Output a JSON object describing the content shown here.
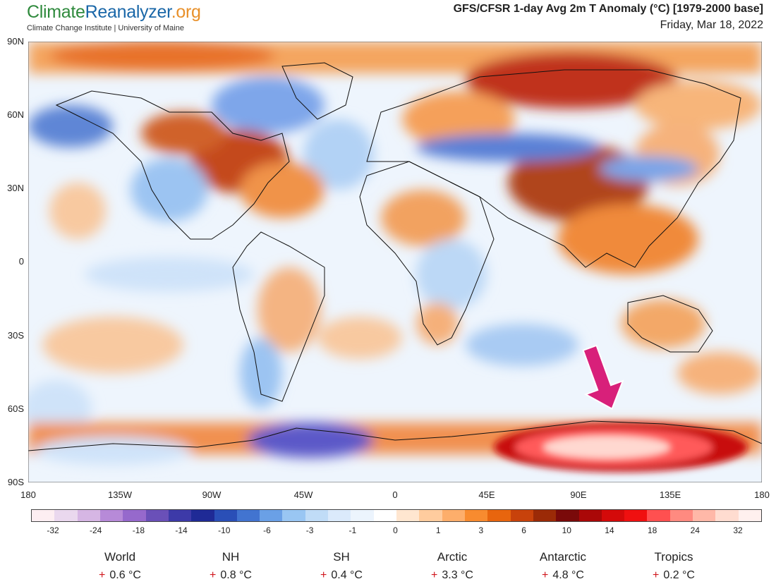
{
  "header": {
    "brand_part1": "Climate",
    "brand_part2": "Reanalyzer",
    "brand_part3": ".org",
    "subtitle": "Climate Change Institute | University of Maine",
    "map_title": "GFS/CFSR 1-day Avg 2m T Anomaly (°C) [1979-2000 base]",
    "date": "Friday, Mar 18, 2022"
  },
  "axes": {
    "latitude_labels": [
      "90N",
      "60N",
      "30N",
      "0",
      "30S",
      "60S",
      "90S"
    ],
    "longitude_labels": [
      "180",
      "135W",
      "90W",
      "45W",
      "0",
      "45E",
      "90E",
      "135E",
      "180"
    ]
  },
  "legend": {
    "colors": [
      "#fdeef2",
      "#ead8ee",
      "#d6b6e4",
      "#b78ad8",
      "#9669cc",
      "#6a50b8",
      "#3d3aa8",
      "#1f2a96",
      "#2a4fb7",
      "#4274d0",
      "#6aa0e6",
      "#99c6f3",
      "#c0dcf7",
      "#dbeafb",
      "#ecf4fd",
      "#ffffff",
      "#ffe6d0",
      "#ffcc9e",
      "#fdae6b",
      "#f88b2f",
      "#e8650e",
      "#c8420b",
      "#9b2a07",
      "#7a0a0a",
      "#aa0808",
      "#d40a0a",
      "#f01010",
      "#ff5050",
      "#ff8a80",
      "#ffb8a8",
      "#ffdcd0",
      "#fff0ee"
    ],
    "tick_labels": [
      "-32",
      "-24",
      "-18",
      "-14",
      "-10",
      "-6",
      "-3",
      "-1",
      "0",
      "1",
      "3",
      "6",
      "10",
      "14",
      "18",
      "24",
      "32"
    ]
  },
  "stats": [
    {
      "label": "World",
      "sign": "+",
      "value": "0.6 °C"
    },
    {
      "label": "NH",
      "sign": "+",
      "value": "0.8 °C"
    },
    {
      "label": "SH",
      "sign": "+",
      "value": "0.4 °C"
    },
    {
      "label": "Arctic",
      "sign": "+",
      "value": "3.3 °C"
    },
    {
      "label": "Antarctic",
      "sign": "+",
      "value": "4.8 °C"
    },
    {
      "label": "Tropics",
      "sign": "+",
      "value": "0.2 °C"
    }
  ],
  "map": {
    "annotation": "pink-arrow-pointing-to-east-antarctica"
  }
}
